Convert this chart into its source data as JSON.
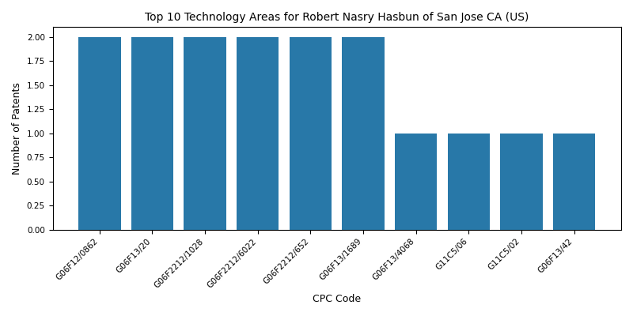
{
  "title": "Top 10 Technology Areas for Robert Nasry Hasbun of San Jose CA (US)",
  "xlabel": "CPC Code",
  "ylabel": "Number of Patents",
  "categories": [
    "G06F12/0862",
    "G06F13/20",
    "G06F2212/1028",
    "G06F2212/6022",
    "G06F2212/652",
    "G06F13/1689",
    "G06F13/4068",
    "G11C5/06",
    "G11C5/02",
    "G06F13/42"
  ],
  "values": [
    2,
    2,
    2,
    2,
    2,
    2,
    1,
    1,
    1,
    1
  ],
  "bar_color": "#2878a8",
  "figsize": [
    8.0,
    4.0
  ],
  "dpi": 100,
  "ylim": [
    0,
    2.1
  ],
  "yticks": [
    0.0,
    0.25,
    0.5,
    0.75,
    1.0,
    1.25,
    1.5,
    1.75,
    2.0
  ],
  "title_fontsize": 10,
  "axis_label_fontsize": 9,
  "tick_fontsize": 7.5
}
